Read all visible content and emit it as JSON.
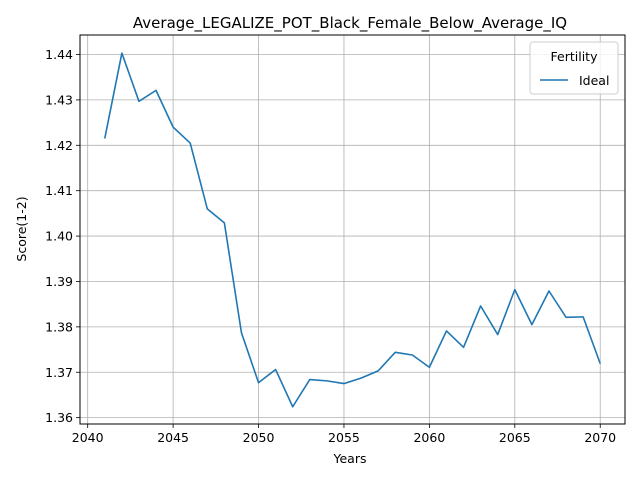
{
  "chart_data": {
    "type": "line",
    "title": "Average_LEGALIZE_POT_Black_Female_Below_Average_IQ",
    "xlabel": "Years",
    "ylabel": "Score(1-2)",
    "xlim": [
      2039.55,
      2071.45
    ],
    "ylim": [
      1.3586,
      1.4443
    ],
    "xticks": [
      2040,
      2045,
      2050,
      2055,
      2060,
      2065,
      2070
    ],
    "yticks": [
      1.36,
      1.37,
      1.38,
      1.39,
      1.4,
      1.41,
      1.42,
      1.43,
      1.44
    ],
    "ytick_labels": [
      "1.36",
      "1.37",
      "1.38",
      "1.39",
      "1.40",
      "1.41",
      "1.42",
      "1.43",
      "1.44"
    ],
    "grid": true,
    "legend": {
      "title": "Fertility",
      "position": "top-right"
    },
    "series": [
      {
        "name": "Ideal",
        "color": "#1f77b4",
        "x": [
          2041,
          2042,
          2043,
          2044,
          2045,
          2046,
          2047,
          2048,
          2049,
          2050,
          2051,
          2052,
          2053,
          2054,
          2055,
          2056,
          2057,
          2058,
          2059,
          2060,
          2061,
          2062,
          2063,
          2064,
          2065,
          2066,
          2067,
          2068,
          2069,
          2070
        ],
        "values": [
          1.4215,
          1.4403,
          1.4297,
          1.4321,
          1.424,
          1.4205,
          1.406,
          1.4029,
          1.3787,
          1.3677,
          1.3706,
          1.3624,
          1.3684,
          1.3681,
          1.3675,
          1.3687,
          1.3703,
          1.3744,
          1.3738,
          1.3711,
          1.3791,
          1.3755,
          1.3846,
          1.3783,
          1.3882,
          1.3805,
          1.3879,
          1.3821,
          1.3822,
          1.3719
        ]
      }
    ]
  }
}
